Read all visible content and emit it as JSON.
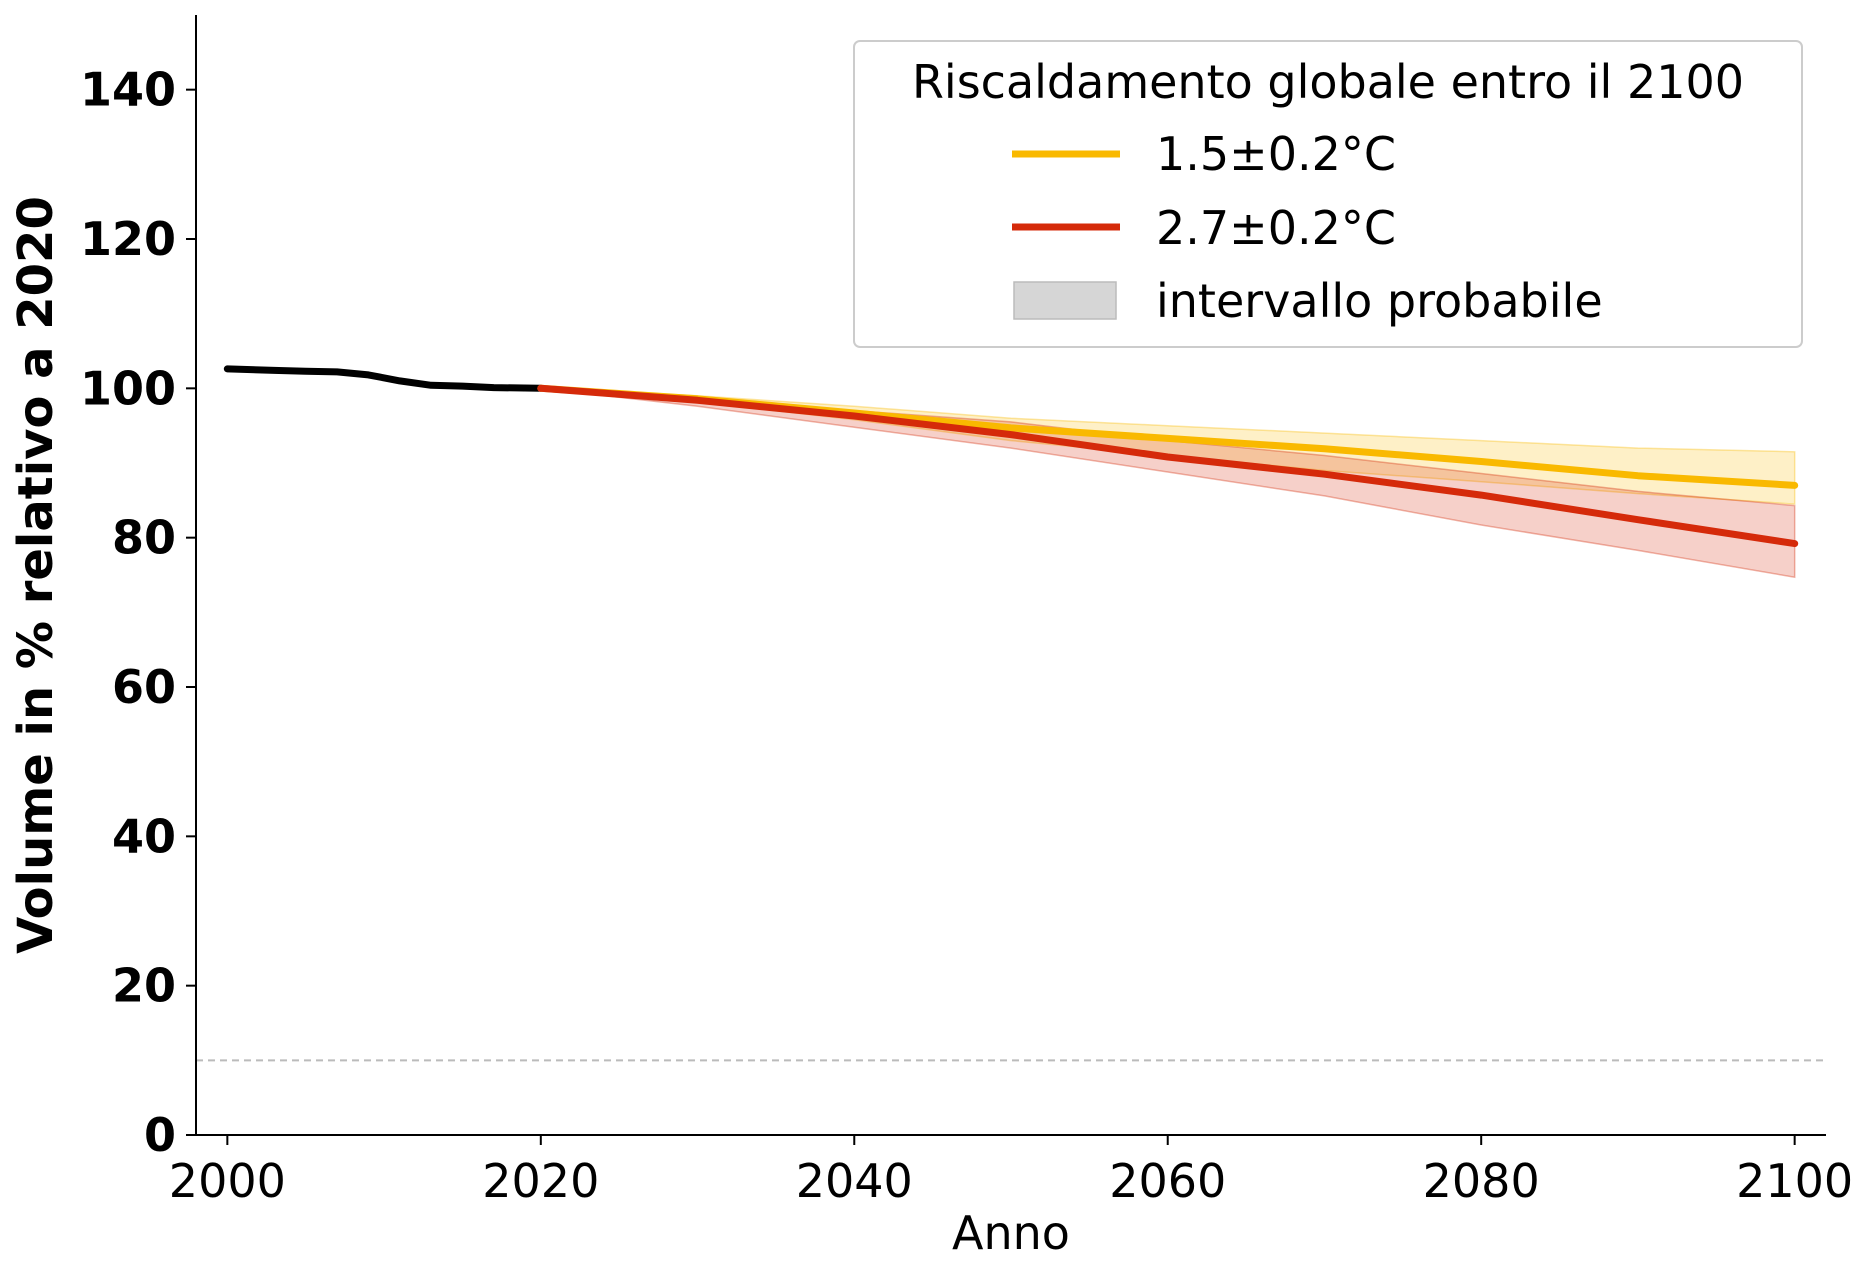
{
  "chart_data": {
    "type": "line",
    "xlabel": "Anno",
    "ylabel": "Volume in % relativo a 2020",
    "xlim": [
      1998,
      2102
    ],
    "ylim": [
      0,
      150
    ],
    "x_ticks": [
      2000,
      2020,
      2040,
      2060,
      2080,
      2100
    ],
    "y_ticks": [
      0,
      20,
      40,
      60,
      80,
      100,
      120,
      140
    ],
    "grid": false,
    "legend": {
      "title": "Riscaldamento globale entro il 2100",
      "position": "top-right",
      "entries": [
        {
          "label": "1.5±0.2°C",
          "kind": "line",
          "color": "#f9b900"
        },
        {
          "label": "2.7±0.2°C",
          "kind": "line",
          "color": "#d52a0a"
        },
        {
          "label": "intervallo probabile",
          "kind": "patch",
          "color": "#d6d6d6"
        }
      ]
    },
    "reference_line": {
      "y": 10,
      "style": "dashed",
      "color": "#bbbbbb"
    },
    "series": [
      {
        "id": "observed",
        "color": "#000000",
        "x": [
          2000,
          2003,
          2005,
          2007,
          2009,
          2011,
          2013,
          2015,
          2017,
          2020
        ],
        "y": [
          102.6,
          102.4,
          102.3,
          102.2,
          101.8,
          101.0,
          100.4,
          100.3,
          100.1,
          100.0
        ]
      },
      {
        "name": "1.5±0.2°C",
        "color": "#f9b900",
        "x": [
          2020,
          2030,
          2040,
          2050,
          2060,
          2070,
          2080,
          2090,
          2100
        ],
        "y": [
          100.0,
          98.6,
          96.7,
          94.7,
          93.3,
          91.9,
          90.2,
          88.3,
          87.0
        ],
        "band_low": [
          100.0,
          98.2,
          95.8,
          93.0,
          91.0,
          89.0,
          87.5,
          85.9,
          84.5
        ],
        "band_high": [
          100.0,
          99.0,
          97.6,
          96.0,
          95.0,
          94.0,
          93.0,
          92.0,
          91.5
        ]
      },
      {
        "name": "2.7±0.2°C",
        "color": "#d52a0a",
        "x": [
          2020,
          2030,
          2040,
          2050,
          2060,
          2070,
          2080,
          2090,
          2100
        ],
        "y": [
          100.0,
          98.4,
          96.3,
          93.8,
          90.8,
          88.5,
          85.7,
          82.4,
          79.2
        ],
        "band_low": [
          100.0,
          97.6,
          94.8,
          92.0,
          88.8,
          85.6,
          81.7,
          78.3,
          74.7
        ],
        "band_high": [
          100.0,
          98.8,
          97.0,
          95.5,
          93.0,
          91.0,
          88.6,
          86.2,
          84.3
        ]
      }
    ]
  }
}
